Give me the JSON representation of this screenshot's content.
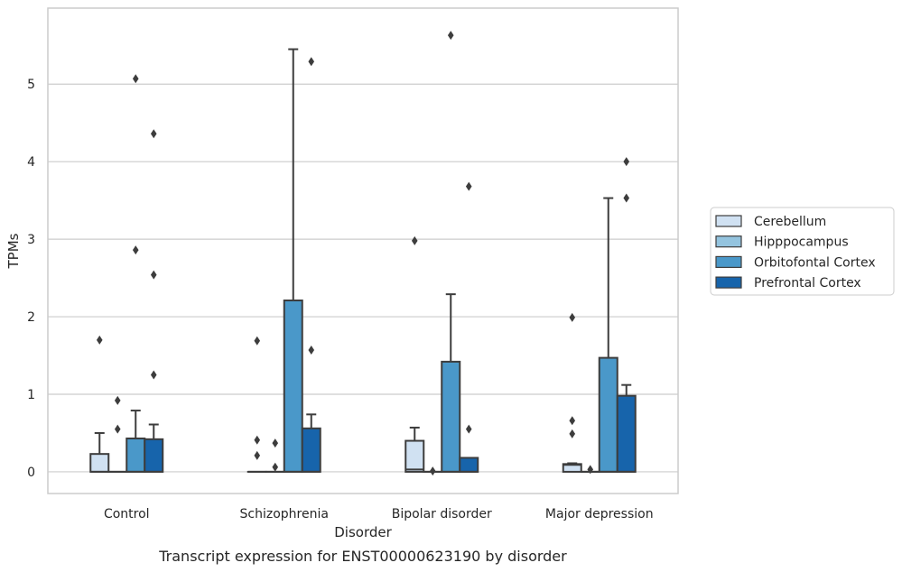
{
  "figure_caption": "Transcript expression for ENST00000623190 by disorder",
  "chart_data": {
    "type": "box",
    "xlabel": "Disorder",
    "ylabel": "TPMs",
    "categories": [
      "Control",
      "Schizophrenia",
      "Bipolar disorder",
      "Major depression"
    ],
    "ylim": [
      -0.28,
      5.98
    ],
    "yticks": [
      0,
      1,
      2,
      3,
      4,
      5
    ],
    "grid": "horizontal",
    "legend_position": "right",
    "series": [
      {
        "name": "Cerebellum",
        "color": "#d0e1f2",
        "boxes": [
          {
            "q1": 0,
            "median": 0,
            "q3": 0.23,
            "whisker_low": 0,
            "whisker_high": 0.5,
            "outliers": [
              1.7
            ]
          },
          {
            "q1": 0,
            "median": 0,
            "q3": 0,
            "whisker_low": 0,
            "whisker_high": 0,
            "outliers": [
              1.69,
              0.41,
              0.21
            ]
          },
          {
            "q1": 0,
            "median": 0.03,
            "q3": 0.4,
            "whisker_low": 0,
            "whisker_high": 0.57,
            "outliers": [
              2.98
            ]
          },
          {
            "q1": 0,
            "median": 0.09,
            "q3": 0.1,
            "whisker_low": 0,
            "whisker_high": 0.11,
            "outliers": [
              1.99,
              0.66,
              0.49
            ]
          }
        ]
      },
      {
        "name": "Hipppocampus",
        "color": "#94c4df",
        "boxes": [
          {
            "q1": 0,
            "median": 0,
            "q3": 0,
            "whisker_low": 0,
            "whisker_high": 0,
            "outliers": [
              0.92,
              0.55
            ]
          },
          {
            "q1": 0,
            "median": 0,
            "q3": 0,
            "whisker_low": 0,
            "whisker_high": 0,
            "outliers": [
              0.37,
              0.06
            ]
          },
          {
            "q1": 0,
            "median": 0,
            "q3": 0,
            "whisker_low": 0,
            "whisker_high": 0,
            "outliers": [
              0.01
            ]
          },
          {
            "q1": 0,
            "median": 0,
            "q3": 0,
            "whisker_low": 0,
            "whisker_high": 0,
            "outliers": [
              0.03
            ]
          }
        ]
      },
      {
        "name": "Orbitofontal Cortex",
        "color": "#4a98c9",
        "boxes": [
          {
            "q1": 0,
            "median": 0,
            "q3": 0.43,
            "whisker_low": 0,
            "whisker_high": 0.79,
            "outliers": [
              5.07,
              2.86
            ]
          },
          {
            "q1": 0,
            "median": 0,
            "q3": 2.21,
            "whisker_low": 0,
            "whisker_high": 5.45,
            "outliers": []
          },
          {
            "q1": 0,
            "median": 0,
            "q3": 1.42,
            "whisker_low": 0,
            "whisker_high": 2.29,
            "outliers": [
              5.63
            ]
          },
          {
            "q1": 0,
            "median": 0,
            "q3": 1.47,
            "whisker_low": 0,
            "whisker_high": 3.53,
            "outliers": []
          }
        ]
      },
      {
        "name": "Prefrontal Cortex",
        "color": "#1764ab",
        "boxes": [
          {
            "q1": 0,
            "median": 0,
            "q3": 0.42,
            "whisker_low": 0,
            "whisker_high": 0.61,
            "outliers": [
              4.36,
              2.54,
              1.25
            ]
          },
          {
            "q1": 0,
            "median": 0,
            "q3": 0.56,
            "whisker_low": 0,
            "whisker_high": 0.74,
            "outliers": [
              5.29,
              1.57
            ]
          },
          {
            "q1": 0,
            "median": 0,
            "q3": 0.18,
            "whisker_low": 0,
            "whisker_high": 0.18,
            "outliers": [
              3.68,
              0.55
            ]
          },
          {
            "q1": 0,
            "median": 0,
            "q3": 0.98,
            "whisker_low": 0,
            "whisker_high": 1.12,
            "outliers": [
              4.0,
              3.53
            ]
          }
        ]
      }
    ]
  }
}
